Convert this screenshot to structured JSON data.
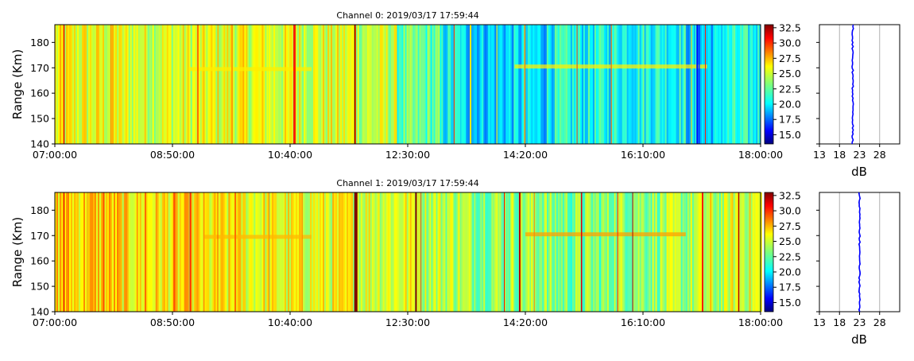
{
  "chart_data": [
    {
      "type": "heatmap",
      "title": "Channel 0: 2019/03/17 17:59:44",
      "ylabel": "Range (Km)",
      "xlabel": "",
      "x_ticks": [
        "07:00:00",
        "08:50:00",
        "10:40:00",
        "12:30:00",
        "14:20:00",
        "16:10:00",
        "18:00:00"
      ],
      "x_range_minutes": [
        420,
        1080
      ],
      "ylim": [
        140,
        187
      ],
      "y_ticks": [
        140,
        150,
        160,
        170,
        180
      ],
      "colorbar": {
        "colormap": "jet",
        "range": [
          13.5,
          33
        ],
        "ticks": [
          "15.0",
          "17.5",
          "20.0",
          "22.5",
          "25.0",
          "27.5",
          "30.0",
          "32.5"
        ]
      },
      "segments": [
        {
          "start": 420,
          "end": 480,
          "level": 25.3
        },
        {
          "start": 480,
          "end": 560,
          "level": 25.0
        },
        {
          "start": 560,
          "end": 620,
          "level": 25.2
        },
        {
          "start": 620,
          "end": 700,
          "level": 25.0
        },
        {
          "start": 700,
          "end": 740,
          "level": 24.5
        },
        {
          "start": 740,
          "end": 780,
          "level": 22.5
        },
        {
          "start": 780,
          "end": 800,
          "level": 20.8
        },
        {
          "start": 800,
          "end": 880,
          "level": 20.0
        },
        {
          "start": 880,
          "end": 940,
          "level": 21.0
        },
        {
          "start": 940,
          "end": 1010,
          "level": 21.3
        },
        {
          "start": 1010,
          "end": 1040,
          "level": 20.0
        },
        {
          "start": 1040,
          "end": 1080,
          "level": 21.0
        }
      ],
      "stripes": [
        {
          "t": 428,
          "w": 1.5,
          "level": 31
        },
        {
          "t": 472,
          "w": 1.5,
          "level": 28
        },
        {
          "t": 553,
          "w": 2,
          "level": 28.5
        },
        {
          "t": 585,
          "w": 2,
          "level": 27.5
        },
        {
          "t": 643,
          "w": 3,
          "level": 30
        },
        {
          "t": 700,
          "w": 2,
          "level": 33
        },
        {
          "t": 701,
          "w": 1,
          "level": 29
        },
        {
          "t": 793,
          "w": 1,
          "level": 30
        },
        {
          "t": 808,
          "w": 2,
          "level": 26
        },
        {
          "t": 833,
          "w": 1,
          "level": 27
        },
        {
          "t": 859,
          "w": 1.5,
          "level": 28
        },
        {
          "t": 908,
          "w": 1,
          "level": 29.5
        },
        {
          "t": 940,
          "w": 1,
          "level": 29
        },
        {
          "t": 1015,
          "w": 1,
          "level": 27
        },
        {
          "t": 1020,
          "w": 2,
          "level": 16
        },
        {
          "t": 1022,
          "w": 1.5,
          "level": 17
        },
        {
          "t": 1028,
          "w": 1,
          "level": 30
        }
      ],
      "bands": [
        {
          "start": 545,
          "end": 660,
          "range": 169.5,
          "level": 26
        },
        {
          "start": 850,
          "end": 1030,
          "range": 170.5,
          "level": 26
        }
      ],
      "profile": {
        "xlabel": "dB",
        "x_ticks": [
          13,
          18,
          23,
          28
        ],
        "xlim": [
          13,
          33
        ],
        "ylim": [
          140,
          187
        ],
        "value": 21.3,
        "color": "#0000ff"
      }
    },
    {
      "type": "heatmap",
      "title": "Channel 1: 2019/03/17 17:59:44",
      "ylabel": "Range (Km)",
      "xlabel": "",
      "x_ticks": [
        "07:00:00",
        "08:50:00",
        "10:40:00",
        "12:30:00",
        "14:20:00",
        "16:10:00",
        "18:00:00"
      ],
      "x_range_minutes": [
        420,
        1080
      ],
      "ylim": [
        140,
        187
      ],
      "y_ticks": [
        140,
        150,
        160,
        170,
        180
      ],
      "colorbar": {
        "colormap": "jet",
        "range": [
          13.5,
          33
        ],
        "ticks": [
          "15.0",
          "17.5",
          "20.0",
          "22.5",
          "25.0",
          "27.5",
          "30.0",
          "32.5"
        ]
      },
      "segments": [
        {
          "start": 420,
          "end": 480,
          "level": 26.5
        },
        {
          "start": 480,
          "end": 560,
          "level": 26.0
        },
        {
          "start": 560,
          "end": 620,
          "level": 25.5
        },
        {
          "start": 620,
          "end": 700,
          "level": 25.3
        },
        {
          "start": 700,
          "end": 760,
          "level": 25.2
        },
        {
          "start": 760,
          "end": 800,
          "level": 24.5
        },
        {
          "start": 800,
          "end": 880,
          "level": 23.8
        },
        {
          "start": 880,
          "end": 940,
          "level": 23.2
        },
        {
          "start": 940,
          "end": 1010,
          "level": 23.8
        },
        {
          "start": 1010,
          "end": 1050,
          "level": 24.0
        },
        {
          "start": 1050,
          "end": 1080,
          "level": 25.0
        }
      ],
      "stripes": [
        {
          "t": 428,
          "w": 1.5,
          "level": 31
        },
        {
          "t": 450,
          "w": 1,
          "level": 28
        },
        {
          "t": 465,
          "w": 2,
          "level": 29
        },
        {
          "t": 504,
          "w": 2,
          "level": 28.5
        },
        {
          "t": 531,
          "w": 2,
          "level": 29
        },
        {
          "t": 546,
          "w": 1.5,
          "level": 30
        },
        {
          "t": 572,
          "w": 1,
          "level": 29
        },
        {
          "t": 588,
          "w": 2,
          "level": 28.5
        },
        {
          "t": 620,
          "w": 1,
          "level": 28
        },
        {
          "t": 651,
          "w": 1,
          "level": 28
        },
        {
          "t": 700,
          "w": 4,
          "level": 33
        },
        {
          "t": 757,
          "w": 2,
          "level": 33
        },
        {
          "t": 762,
          "w": 1,
          "level": 29
        },
        {
          "t": 840,
          "w": 1,
          "level": 31
        },
        {
          "t": 854,
          "w": 2,
          "level": 32
        },
        {
          "t": 868,
          "w": 1,
          "level": 28
        },
        {
          "t": 912,
          "w": 1.5,
          "level": 31
        },
        {
          "t": 946,
          "w": 1,
          "level": 30
        },
        {
          "t": 960,
          "w": 1,
          "level": 32
        },
        {
          "t": 1025,
          "w": 2,
          "level": 30
        },
        {
          "t": 1033,
          "w": 1,
          "level": 28
        },
        {
          "t": 1059,
          "w": 1.5,
          "level": 32
        }
      ],
      "bands": [
        {
          "start": 560,
          "end": 660,
          "range": 169.5,
          "level": 27
        },
        {
          "start": 860,
          "end": 1010,
          "range": 170.5,
          "level": 27.5
        }
      ],
      "profile": {
        "xlabel": "dB",
        "x_ticks": [
          13,
          18,
          23,
          28
        ],
        "xlim": [
          13,
          33
        ],
        "ylim": [
          140,
          187
        ],
        "value": 23.0,
        "color": "#0000ff"
      }
    }
  ]
}
